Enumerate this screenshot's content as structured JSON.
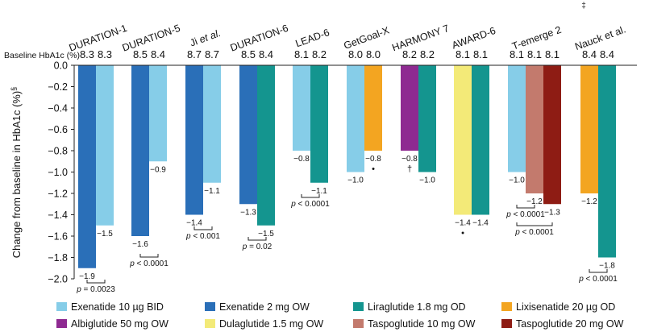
{
  "chart_data": {
    "type": "bar",
    "ylabel": "Change from baseline in HbA1c (%)",
    "ylabel_sup": "§",
    "baseline_label": "Baseline HbA1c (%)",
    "ylim": [
      -2.0,
      0.0
    ],
    "yticks": [
      "0.0",
      "−0.2",
      "−0.4",
      "−0.6",
      "−0.8",
      "−1.0",
      "−1.2",
      "−1.4",
      "−1.6",
      "−1.8",
      "−2.0"
    ],
    "ytick_values": [
      0.0,
      -0.2,
      -0.4,
      -0.6,
      -0.8,
      -1.0,
      -1.2,
      -1.4,
      -1.6,
      -1.8,
      -2.0
    ],
    "legend": [
      {
        "label": "Exenatide 10 µg BID",
        "color": "#86cde8"
      },
      {
        "label": "Exenatide 2 mg OW",
        "color": "#2a6fb8"
      },
      {
        "label": "Liraglutide 1.8 mg OD",
        "color": "#14958f"
      },
      {
        "label": "Lixisenatide 20 µg OD",
        "color": "#f3a521"
      },
      {
        "label": "Albiglutide 50 mg OW",
        "color": "#8e2a91"
      },
      {
        "label": "Dulaglutide 1.5 mg OW",
        "color": "#f3ea78"
      },
      {
        "label": "Taspoglutide 10 mg OW",
        "color": "#c37a6d"
      },
      {
        "label": "Taspoglutide 20 mg OW",
        "color": "#8e1c14"
      }
    ],
    "studies": [
      {
        "name": "DURATION-1",
        "bars": [
          {
            "drug": "Exenatide 2 mg OW",
            "value": -1.9,
            "baseline": "8.3",
            "label": "−1.9"
          },
          {
            "drug": "Exenatide 10 µg BID",
            "value": -1.5,
            "baseline": "8.3",
            "label": "−1.5"
          }
        ],
        "p_values": [
          {
            "text": "p = 0.0023"
          }
        ]
      },
      {
        "name": "DURATION-5",
        "bars": [
          {
            "drug": "Exenatide 2 mg OW",
            "value": -1.6,
            "baseline": "8.5",
            "label": "−1.6"
          },
          {
            "drug": "Exenatide 10 µg BID",
            "value": -0.9,
            "baseline": "8.4",
            "label": "−0.9"
          }
        ],
        "p_values": [
          {
            "text": "p < 0.0001"
          }
        ]
      },
      {
        "name": "Ji",
        "name_suffix": "et al.",
        "bars": [
          {
            "drug": "Exenatide 2 mg OW",
            "value": -1.4,
            "baseline": "8.7",
            "label": "−1.4"
          },
          {
            "drug": "Exenatide 10 µg BID",
            "value": -1.1,
            "baseline": "8.7",
            "label": "−1.1"
          }
        ],
        "p_values": [
          {
            "text": "p < 0.001"
          }
        ]
      },
      {
        "name": "DURATION-6",
        "bars": [
          {
            "drug": "Exenatide 2 mg OW",
            "value": -1.3,
            "baseline": "8.5",
            "label": "−1.3"
          },
          {
            "drug": "Liraglutide 1.8 mg OD",
            "value": -1.5,
            "baseline": "8.4",
            "label": "−1.5"
          }
        ],
        "p_values": [
          {
            "text": "p = 0.02"
          }
        ]
      },
      {
        "name": "LEAD-6",
        "bars": [
          {
            "drug": "Exenatide 10 µg BID",
            "value": -0.8,
            "baseline": "8.1",
            "label": "−0.8"
          },
          {
            "drug": "Liraglutide 1.8 mg OD",
            "value": -1.1,
            "baseline": "8.2",
            "label": "−1.1"
          }
        ],
        "p_values": [
          {
            "text": "p < 0.0001"
          }
        ]
      },
      {
        "name": "GetGoal-X",
        "bars": [
          {
            "drug": "Exenatide 10 µg BID",
            "value": -1.0,
            "baseline": "8.0",
            "label": "−1.0"
          },
          {
            "drug": "Lixisenatide 20 µg OD",
            "value": -0.8,
            "baseline": "8.0",
            "label": "−0.8",
            "mark": "•"
          }
        ],
        "p_values": []
      },
      {
        "name": "HARMONY 7",
        "bars": [
          {
            "drug": "Albiglutide 50 mg OW",
            "value": -0.8,
            "baseline": "8.2",
            "label": "−0.8",
            "mark": "†"
          },
          {
            "drug": "Liraglutide 1.8 mg OD",
            "value": -1.0,
            "baseline": "8.2",
            "label": "−1.0"
          }
        ],
        "p_values": []
      },
      {
        "name": "AWARD-6",
        "bars": [
          {
            "drug": "Dulaglutide 1.5 mg OW",
            "value": -1.4,
            "baseline": "8.1",
            "label": "−1.4",
            "mark": "•"
          },
          {
            "drug": "Liraglutide 1.8 mg OD",
            "value": -1.4,
            "baseline": "8.1",
            "label": "−1.4"
          }
        ],
        "p_values": []
      },
      {
        "name": "T-emerge 2",
        "bars": [
          {
            "drug": "Exenatide 10 µg BID",
            "value": -1.0,
            "baseline": "8.1",
            "label": "−1.0"
          },
          {
            "drug": "Taspoglutide 10 mg OW",
            "value": -1.2,
            "baseline": "8.1",
            "label": "−1.2"
          },
          {
            "drug": "Taspoglutide 20 mg OW",
            "value": -1.3,
            "baseline": "8.1",
            "label": "−1.3"
          }
        ],
        "p_values": [
          {
            "text": "p < 0.0001"
          },
          {
            "text": "p < 0.0001"
          }
        ]
      },
      {
        "name": "Nauck et al.",
        "name_mark": "‡",
        "bars": [
          {
            "drug": "Lixisenatide 20 µg OD",
            "value": -1.2,
            "baseline": "8.4",
            "label": "−1.2"
          },
          {
            "drug": "Liraglutide 1.8 mg OD",
            "value": -1.8,
            "baseline": "8.4",
            "label": "−1.8"
          }
        ],
        "p_values": [
          {
            "text": "p < 0.0001"
          }
        ]
      }
    ]
  }
}
